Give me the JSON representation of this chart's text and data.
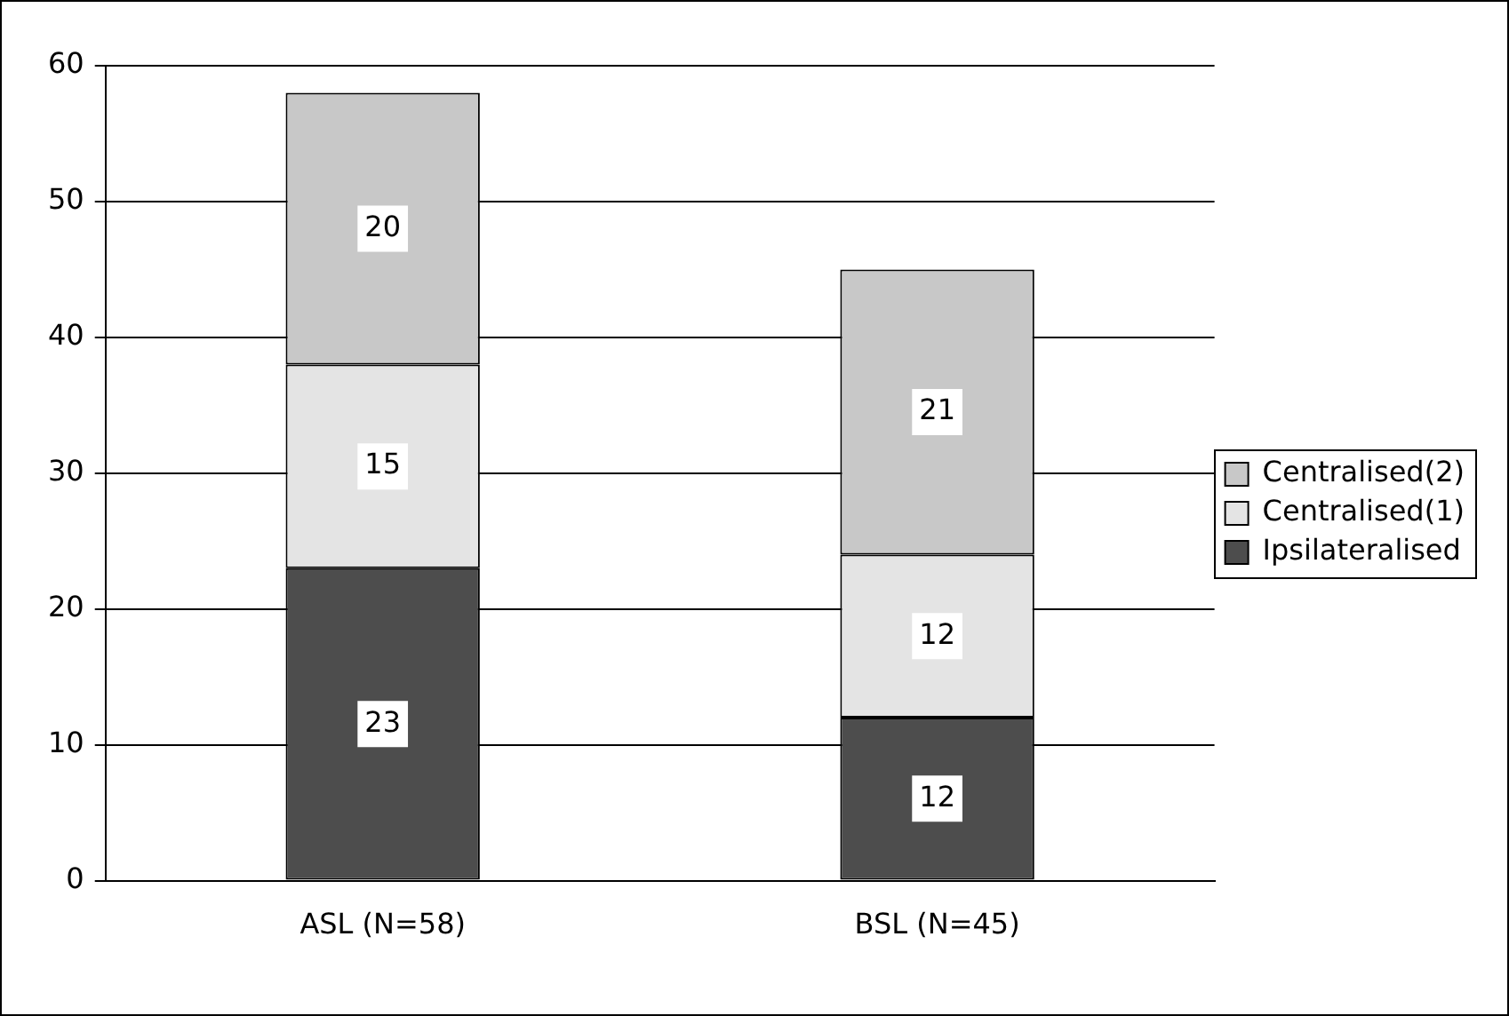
{
  "chart_data": {
    "type": "bar",
    "stacked": true,
    "categories": [
      "ASL (N=58)",
      "BSL (N=45)"
    ],
    "series": [
      {
        "name": "Ipsilateralised",
        "color": "#4d4d4d",
        "values": [
          23,
          12
        ]
      },
      {
        "name": "Centralised(1)",
        "color": "#e4e4e4",
        "values": [
          15,
          12
        ]
      },
      {
        "name": "Centralised(2)",
        "color": "#c8c8c8",
        "values": [
          20,
          21
        ]
      }
    ],
    "ylim": [
      0,
      60
    ],
    "yticks": [
      0,
      10,
      20,
      30,
      40,
      50,
      60
    ],
    "grid": "y",
    "legend": "right",
    "data_labels": true
  }
}
